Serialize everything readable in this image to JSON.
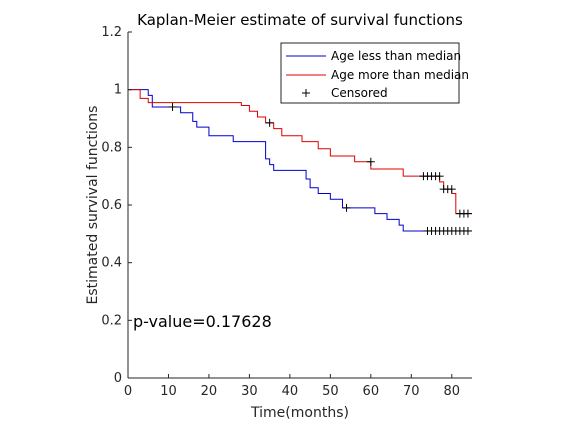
{
  "chart_data": {
    "type": "line",
    "title": "Kaplan-Meier estimate of survival functions",
    "xlabel": "Time(months)",
    "ylabel": "Estimated survival functions",
    "xlim": [
      0,
      85
    ],
    "ylim": [
      0,
      1.2
    ],
    "xticks": [
      "0",
      "10",
      "20",
      "30",
      "40",
      "50",
      "60",
      "70",
      "80"
    ],
    "yticks": [
      "0",
      "0.2",
      "0.4",
      "0.6",
      "0.8",
      "1",
      "1.2"
    ],
    "xtick_values": [
      0,
      10,
      20,
      30,
      40,
      50,
      60,
      70,
      80
    ],
    "ytick_values": [
      0,
      0.2,
      0.4,
      0.6,
      0.8,
      1,
      1.2
    ],
    "grid": false,
    "legend_position": "top-right",
    "annotation": "p-value=0.17628",
    "series": [
      {
        "name": "Age less than median",
        "color": "#0000cc",
        "steps": [
          [
            0,
            1.0
          ],
          [
            5,
            0.98
          ],
          [
            6,
            0.94
          ],
          [
            11,
            0.94
          ],
          [
            13,
            0.92
          ],
          [
            16,
            0.89
          ],
          [
            17,
            0.87
          ],
          [
            20,
            0.84
          ],
          [
            26,
            0.82
          ],
          [
            34,
            0.76
          ],
          [
            35,
            0.74
          ],
          [
            36,
            0.72
          ],
          [
            44,
            0.69
          ],
          [
            45,
            0.66
          ],
          [
            47,
            0.64
          ],
          [
            50,
            0.62
          ],
          [
            53,
            0.59
          ],
          [
            61,
            0.57
          ],
          [
            64,
            0.55
          ],
          [
            67,
            0.53
          ],
          [
            68,
            0.51
          ],
          [
            85,
            0.51
          ]
        ],
        "censored": [
          [
            11,
            0.94
          ],
          [
            54,
            0.59
          ],
          [
            74,
            0.51
          ],
          [
            75,
            0.51
          ],
          [
            76,
            0.51
          ],
          [
            77,
            0.51
          ],
          [
            78,
            0.51
          ],
          [
            79,
            0.51
          ],
          [
            80,
            0.51
          ],
          [
            81,
            0.51
          ],
          [
            82,
            0.51
          ],
          [
            83,
            0.51
          ],
          [
            84,
            0.51
          ]
        ]
      },
      {
        "name": "Age more than median",
        "color": "#dd0000",
        "steps": [
          [
            0,
            1.0
          ],
          [
            3,
            0.97
          ],
          [
            5,
            0.955
          ],
          [
            28,
            0.945
          ],
          [
            30,
            0.925
          ],
          [
            32,
            0.905
          ],
          [
            34,
            0.885
          ],
          [
            36,
            0.865
          ],
          [
            38,
            0.84
          ],
          [
            43,
            0.82
          ],
          [
            47,
            0.795
          ],
          [
            50,
            0.77
          ],
          [
            56,
            0.75
          ],
          [
            60,
            0.725
          ],
          [
            68,
            0.7
          ],
          [
            77,
            0.68
          ],
          [
            78,
            0.655
          ],
          [
            80,
            0.64
          ],
          [
            81,
            0.57
          ],
          [
            85,
            0.57
          ]
        ],
        "censored": [
          [
            35,
            0.885
          ],
          [
            60,
            0.75
          ],
          [
            73,
            0.7
          ],
          [
            74,
            0.7
          ],
          [
            75,
            0.7
          ],
          [
            76,
            0.7
          ],
          [
            77,
            0.7
          ],
          [
            78,
            0.655
          ],
          [
            79,
            0.655
          ],
          [
            80,
            0.655
          ],
          [
            82,
            0.57
          ],
          [
            83,
            0.57
          ],
          [
            84,
            0.57
          ]
        ]
      }
    ],
    "censored_legend": "Censored"
  }
}
